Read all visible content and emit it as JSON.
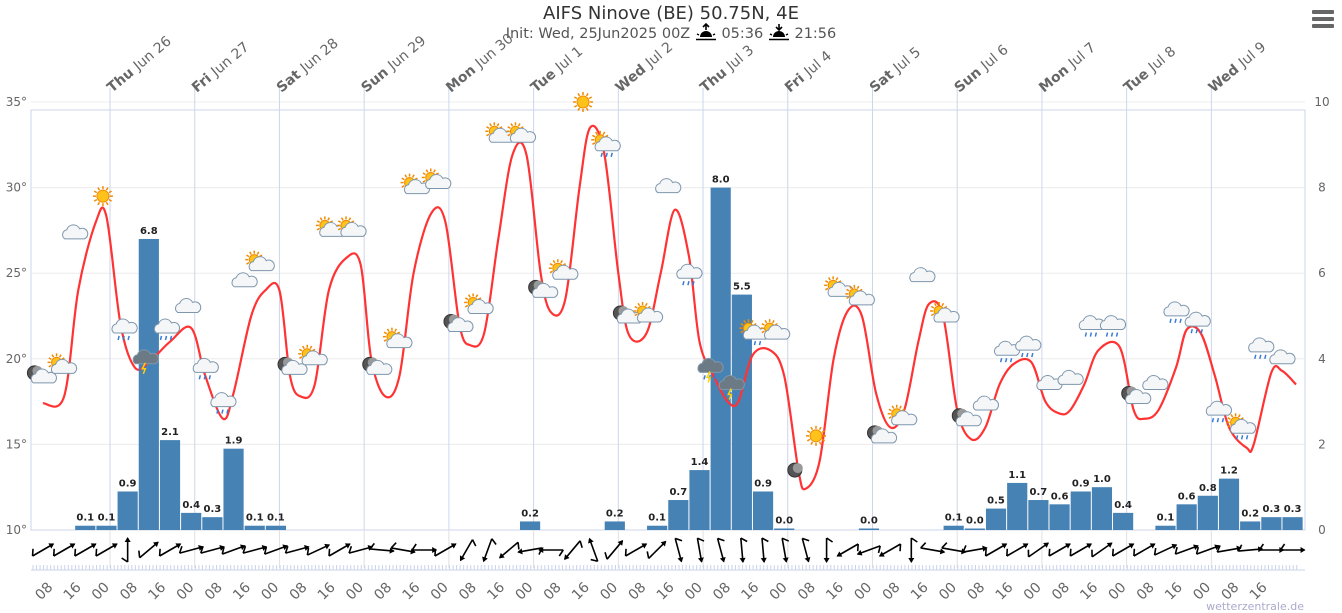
{
  "header": {
    "title": "AIFS Ninove (BE) 50.75N, 4E",
    "init": "Init: Wed, 25Jun2025 00Z",
    "sunrise": "05:36",
    "sunset": "21:56",
    "menu_icon": "hamburger-menu-icon"
  },
  "watermark": "wetterzentrale.de",
  "colors": {
    "temperature": "#ff3333",
    "precipitation": "#4682b4",
    "grid": "#e6e6e6"
  },
  "chart_data": {
    "type": "line+bar",
    "title": "AIFS Ninove (BE) 50.75N, 4E",
    "grid": true,
    "y_left": {
      "ticks": [
        "10°",
        "15°",
        "20°",
        "25°",
        "30°",
        "35°"
      ],
      "range": [
        10,
        35
      ],
      "unit": "°C"
    },
    "y_right": {
      "ticks": [
        "0",
        "2",
        "4",
        "6",
        "8",
        "10"
      ],
      "range": [
        0,
        10
      ],
      "unit": "mm"
    },
    "days": [
      {
        "dow": "Thu",
        "date": "Jun 26",
        "t": "06-26 00"
      },
      {
        "dow": "Fri",
        "date": "Jun 27",
        "t": "06-27 00"
      },
      {
        "dow": "Sat",
        "date": "Jun 28",
        "t": "06-28 00"
      },
      {
        "dow": "Sun",
        "date": "Jun 29",
        "t": "06-29 00"
      },
      {
        "dow": "Mon",
        "date": "Jun 30",
        "t": "06-30 00"
      },
      {
        "dow": "Tue",
        "date": "Jul 1",
        "t": "07-01 00"
      },
      {
        "dow": "Wed",
        "date": "Jul 2",
        "t": "07-02 00"
      },
      {
        "dow": "Thu",
        "date": "Jul 3",
        "t": "07-03 00"
      },
      {
        "dow": "Fri",
        "date": "Jul 4",
        "t": "07-04 00"
      },
      {
        "dow": "Sat",
        "date": "Jul 5",
        "t": "07-05 00"
      },
      {
        "dow": "Sun",
        "date": "Jul 6",
        "t": "07-06 00"
      },
      {
        "dow": "Mon",
        "date": "Jul 7",
        "t": "07-07 00"
      },
      {
        "dow": "Tue",
        "date": "Jul 8",
        "t": "07-08 00"
      },
      {
        "dow": "Wed",
        "date": "Jul 9",
        "t": "07-09 00"
      }
    ],
    "hour_ticks": [
      "08",
      "16",
      "00"
    ],
    "temperature": [
      [
        "06-25 05",
        17.4
      ],
      [
        "06-25 11",
        17.8
      ],
      [
        "06-25 15",
        24
      ],
      [
        "06-25 20",
        28
      ],
      [
        "06-25 23",
        28.3
      ],
      [
        "06-26 03",
        22
      ],
      [
        "06-26 07",
        19.5
      ],
      [
        "06-26 11",
        19.8
      ],
      [
        "06-26 17",
        21
      ],
      [
        "06-26 23",
        21.8
      ],
      [
        "06-27 03",
        19
      ],
      [
        "06-27 08",
        16.5
      ],
      [
        "06-27 11",
        18
      ],
      [
        "06-27 16",
        22.5
      ],
      [
        "06-27 20",
        24
      ],
      [
        "06-28 00",
        24
      ],
      [
        "06-28 03",
        19
      ],
      [
        "06-28 06",
        17.8
      ],
      [
        "06-28 10",
        18.5
      ],
      [
        "06-28 14",
        24
      ],
      [
        "06-28 19",
        25.9
      ],
      [
        "06-28 23",
        25.5
      ],
      [
        "06-29 02",
        20
      ],
      [
        "06-29 06",
        17.8
      ],
      [
        "06-29 10",
        19
      ],
      [
        "06-29 14",
        25
      ],
      [
        "06-29 19",
        28.5
      ],
      [
        "06-29 23",
        28
      ],
      [
        "06-30 03",
        22
      ],
      [
        "06-30 06",
        20.8
      ],
      [
        "06-30 10",
        21.5
      ],
      [
        "06-30 14",
        27
      ],
      [
        "06-30 18",
        31.9
      ],
      [
        "06-30 22",
        31.9
      ],
      [
        "07-01 02",
        25
      ],
      [
        "07-01 05",
        22.7
      ],
      [
        "07-01 09",
        23.5
      ],
      [
        "07-01 13",
        30
      ],
      [
        "07-01 16",
        33.5
      ],
      [
        "07-01 20",
        32
      ],
      [
        "07-02 00",
        25
      ],
      [
        "07-02 03",
        21.4
      ],
      [
        "07-02 08",
        21.5
      ],
      [
        "07-02 12",
        25
      ],
      [
        "07-02 16",
        28.7
      ],
      [
        "07-02 20",
        26
      ],
      [
        "07-02 23",
        21
      ],
      [
        "07-03 03",
        19
      ],
      [
        "07-03 07",
        17.5
      ],
      [
        "07-03 10",
        17.5
      ],
      [
        "07-03 14",
        20.2
      ],
      [
        "07-03 19",
        20.5
      ],
      [
        "07-03 23",
        19
      ],
      [
        "07-04 03",
        13.5
      ],
      [
        "07-04 05",
        12.4
      ],
      [
        "07-04 09",
        14
      ],
      [
        "07-04 13",
        20
      ],
      [
        "07-04 17",
        22.8
      ],
      [
        "07-04 21",
        22.5
      ],
      [
        "07-05 01",
        18
      ],
      [
        "07-05 05",
        16
      ],
      [
        "07-05 09",
        17
      ],
      [
        "07-05 13",
        21
      ],
      [
        "07-05 16",
        23.2
      ],
      [
        "07-05 20",
        22.5
      ],
      [
        "07-06 00",
        17
      ],
      [
        "07-06 04",
        15.3
      ],
      [
        "07-06 08",
        16
      ],
      [
        "07-06 12",
        18.5
      ],
      [
        "07-06 16",
        19.7
      ],
      [
        "07-06 21",
        19.8
      ],
      [
        "07-07 01",
        17.5
      ],
      [
        "07-07 05",
        16.8
      ],
      [
        "07-07 08",
        17
      ],
      [
        "07-07 12",
        18.5
      ],
      [
        "07-07 16",
        20.5
      ],
      [
        "07-07 22",
        20.7
      ],
      [
        "07-08 02",
        17
      ],
      [
        "07-08 05",
        16.5
      ],
      [
        "07-08 09",
        17
      ],
      [
        "07-08 14",
        19.5
      ],
      [
        "07-08 17",
        21.7
      ],
      [
        "07-08 21",
        21.5
      ],
      [
        "07-09 01",
        19
      ],
      [
        "07-09 05",
        16
      ],
      [
        "07-09 10",
        14.8
      ],
      [
        "07-09 12",
        15
      ],
      [
        "07-09 17",
        19.2
      ],
      [
        "07-09 20",
        19.3
      ],
      [
        "07-10 00",
        18.5
      ]
    ],
    "precipitation_6h": [
      [
        "06-25 14",
        0.1
      ],
      [
        "06-25 20",
        0.1
      ],
      [
        "06-26 02",
        0.9
      ],
      [
        "06-26 08",
        6.8
      ],
      [
        "06-26 14",
        2.1
      ],
      [
        "06-26 20",
        0.4
      ],
      [
        "06-27 02",
        0.3
      ],
      [
        "06-27 08",
        1.9
      ],
      [
        "06-27 14",
        0.1
      ],
      [
        "06-27 20",
        0.1
      ],
      [
        "06-30 20",
        0.2
      ],
      [
        "07-01 20",
        0.2
      ],
      [
        "07-02 08",
        0.1
      ],
      [
        "07-02 14",
        0.7
      ],
      [
        "07-02 20",
        1.4
      ],
      [
        "07-03 02",
        8.0
      ],
      [
        "07-03 08",
        5.5
      ],
      [
        "07-03 14",
        0.9
      ],
      [
        "07-03 20",
        0.0
      ],
      [
        "07-04 20",
        0.0
      ],
      [
        "07-05 20",
        0.1
      ],
      [
        "07-06 02",
        0.0
      ],
      [
        "07-06 08",
        0.5
      ],
      [
        "07-06 14",
        1.1
      ],
      [
        "07-06 20",
        0.7
      ],
      [
        "07-07 02",
        0.6
      ],
      [
        "07-07 08",
        0.9
      ],
      [
        "07-07 14",
        1.0
      ],
      [
        "07-07 20",
        0.4
      ],
      [
        "07-08 08",
        0.1
      ],
      [
        "07-08 14",
        0.6
      ],
      [
        "07-08 20",
        0.8
      ],
      [
        "07-09 02",
        1.2
      ],
      [
        "07-09 08",
        0.2
      ],
      [
        "07-09 14",
        0.3
      ],
      [
        "07-09 20",
        0.3
      ]
    ],
    "weather_icons": [
      [
        "06-25 04",
        19.0,
        "moon-cloud"
      ],
      [
        "06-25 10",
        19.5,
        "sun-cloud"
      ],
      [
        "06-25 14",
        27.3,
        "cloud"
      ],
      [
        "06-25 22",
        29.5,
        "sun"
      ],
      [
        "06-26 04",
        21.8,
        "cloud-rain"
      ],
      [
        "06-26 10",
        20,
        "thunder"
      ],
      [
        "06-26 16",
        21.8,
        "cloud-rain"
      ],
      [
        "06-26 22",
        23,
        "cloud"
      ],
      [
        "06-27 03",
        19.5,
        "cloud-rain"
      ],
      [
        "06-27 08",
        17.5,
        "cloud-rain"
      ],
      [
        "06-27 14",
        24.5,
        "cloud"
      ],
      [
        "06-27 18",
        25.5,
        "sun-cloud"
      ],
      [
        "06-28 03",
        19.5,
        "moon-cloud"
      ],
      [
        "06-28 09",
        20,
        "sun-cloud"
      ],
      [
        "06-28 14",
        27.5,
        "sun-cloud"
      ],
      [
        "06-28 20",
        27.5,
        "sun-cloud"
      ],
      [
        "06-29 03",
        19.5,
        "moon-cloud"
      ],
      [
        "06-29 09",
        21,
        "sun-cloud"
      ],
      [
        "06-29 14",
        30,
        "sun-cloud"
      ],
      [
        "06-29 20",
        30.3,
        "sun-cloud"
      ],
      [
        "06-30 02",
        22,
        "moon-cloud"
      ],
      [
        "06-30 08",
        23,
        "sun-cloud"
      ],
      [
        "06-30 14",
        33,
        "sun-cloud"
      ],
      [
        "06-30 20",
        33,
        "sun-cloud"
      ],
      [
        "07-01 02",
        24,
        "moon-cloud"
      ],
      [
        "07-01 08",
        25,
        "sun-cloud"
      ],
      [
        "07-01 14",
        35,
        "sun"
      ],
      [
        "07-01 20",
        32.5,
        "sun-rain"
      ],
      [
        "07-02 02",
        22.5,
        "moon-cloud"
      ],
      [
        "07-02 08",
        22.5,
        "sun-cloud"
      ],
      [
        "07-02 14",
        30,
        "cloud"
      ],
      [
        "07-02 20",
        25,
        "cloud-rain"
      ],
      [
        "07-03 02",
        19.5,
        "thunder"
      ],
      [
        "07-03 08",
        18.5,
        "thunder"
      ],
      [
        "07-03 14",
        21.5,
        "sun-rain"
      ],
      [
        "07-03 20",
        21.5,
        "sun-cloud"
      ],
      [
        "07-04 02",
        13.5,
        "moon"
      ],
      [
        "07-04 08",
        15.5,
        "sun"
      ],
      [
        "07-04 14",
        24,
        "sun-cloud"
      ],
      [
        "07-04 20",
        23.5,
        "sun-cloud"
      ],
      [
        "07-05 02",
        15.5,
        "moon-cloud"
      ],
      [
        "07-05 08",
        16.5,
        "sun-cloud"
      ],
      [
        "07-05 14",
        24.8,
        "cloud"
      ],
      [
        "07-05 20",
        22.5,
        "sun-cloud"
      ],
      [
        "07-06 02",
        16.5,
        "moon-cloud"
      ],
      [
        "07-06 08",
        17.3,
        "cloud"
      ],
      [
        "07-06 14",
        20.5,
        "cloud-rain"
      ],
      [
        "07-06 20",
        20.8,
        "cloud-rain"
      ],
      [
        "07-07 02",
        18.5,
        "cloud"
      ],
      [
        "07-07 08",
        18.8,
        "cloud"
      ],
      [
        "07-07 14",
        22,
        "cloud-rain"
      ],
      [
        "07-07 20",
        22,
        "cloud-rain"
      ],
      [
        "07-08 02",
        17.8,
        "moon-cloud"
      ],
      [
        "07-08 08",
        18.5,
        "cloud"
      ],
      [
        "07-08 14",
        22.8,
        "cloud-rain"
      ],
      [
        "07-08 20",
        22.2,
        "cloud-rain"
      ],
      [
        "07-09 02",
        17,
        "cloud-rain"
      ],
      [
        "07-09 08",
        16,
        "sun-rain"
      ],
      [
        "07-09 14",
        20.7,
        "cloud-rain"
      ],
      [
        "07-09 20",
        20,
        "cloud"
      ]
    ],
    "wind_arrow_direction_deg": [
      [
        "06-25 05",
        60
      ],
      [
        "06-25 11",
        60
      ],
      [
        "06-25 17",
        60
      ],
      [
        "06-25 23",
        60
      ],
      [
        "06-26 05",
        0
      ],
      [
        "06-26 11",
        50
      ],
      [
        "06-26 17",
        60
      ],
      [
        "06-26 23",
        75
      ],
      [
        "06-27 05",
        75
      ],
      [
        "06-27 11",
        70
      ],
      [
        "06-27 17",
        75
      ],
      [
        "06-27 23",
        70
      ],
      [
        "06-28 05",
        75
      ],
      [
        "06-28 11",
        65
      ],
      [
        "06-28 17",
        60
      ],
      [
        "06-28 23",
        75
      ],
      [
        "06-29 05",
        95
      ],
      [
        "06-29 11",
        100
      ],
      [
        "06-29 17",
        90
      ],
      [
        "06-29 23",
        60
      ],
      [
        "06-30 05",
        210
      ],
      [
        "06-30 11",
        200
      ],
      [
        "06-30 17",
        230
      ],
      [
        "06-30 23",
        260
      ],
      [
        "07-01 05",
        270
      ],
      [
        "07-01 11",
        220
      ],
      [
        "07-01 17",
        340
      ],
      [
        "07-01 23",
        40
      ],
      [
        "07-02 05",
        60
      ],
      [
        "07-02 11",
        45
      ],
      [
        "07-02 17",
        165
      ],
      [
        "07-02 23",
        170
      ],
      [
        "07-03 05",
        165
      ],
      [
        "07-03 11",
        175
      ],
      [
        "07-03 17",
        175
      ],
      [
        "07-03 23",
        170
      ],
      [
        "07-04 05",
        165
      ],
      [
        "07-04 11",
        180
      ],
      [
        "07-04 17",
        240
      ],
      [
        "07-04 23",
        250
      ],
      [
        "07-05 05",
        240
      ],
      [
        "07-05 11",
        180
      ],
      [
        "07-05 17",
        100
      ],
      [
        "07-05 23",
        100
      ],
      [
        "07-06 05",
        80
      ],
      [
        "07-06 11",
        60
      ],
      [
        "07-06 17",
        60
      ],
      [
        "07-06 23",
        55
      ],
      [
        "07-07 05",
        60
      ],
      [
        "07-07 11",
        60
      ],
      [
        "07-07 17",
        55
      ],
      [
        "07-07 23",
        60
      ],
      [
        "07-08 05",
        60
      ],
      [
        "07-08 11",
        65
      ],
      [
        "07-08 17",
        70
      ],
      [
        "07-08 23",
        70
      ],
      [
        "07-09 05",
        80
      ],
      [
        "07-09 11",
        85
      ],
      [
        "07-09 17",
        90
      ],
      [
        "07-09 23",
        90
      ]
    ]
  }
}
